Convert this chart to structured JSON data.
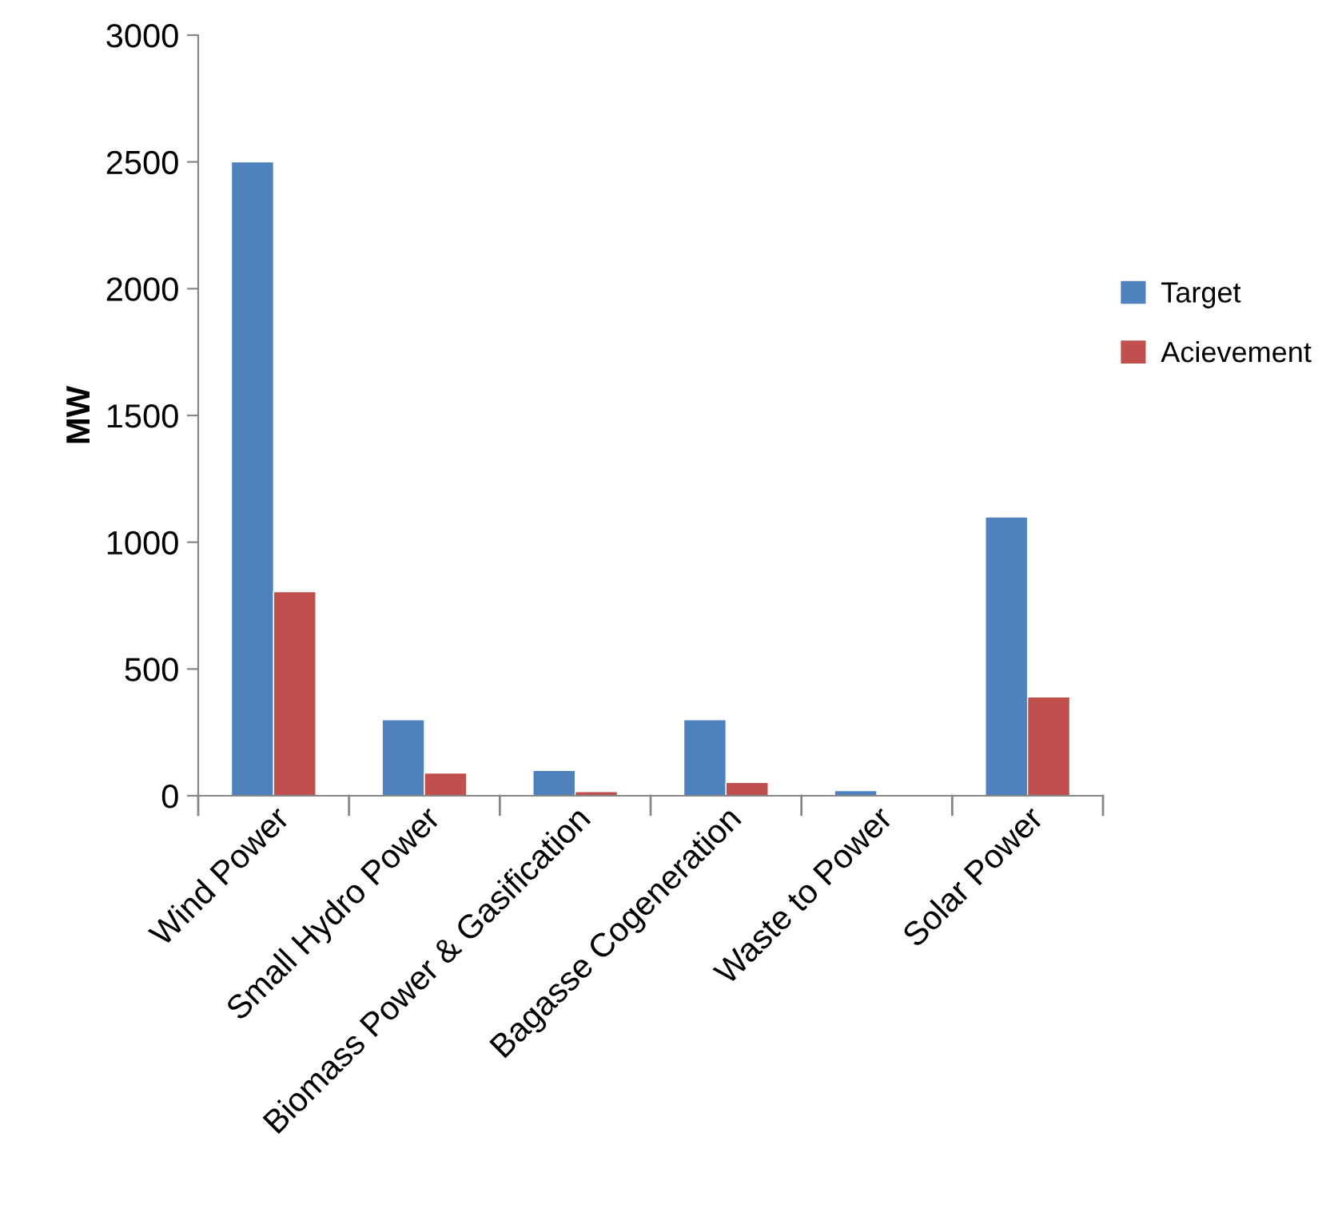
{
  "chart_data": {
    "type": "bar",
    "ylabel": "MW",
    "categories": [
      "Wind Power",
      "Small Hydro Power",
      "Biomass Power & Gasification",
      "Bagasse Cogeneration",
      "Waste to Power",
      "Solar Power"
    ],
    "series": [
      {
        "name": "Target",
        "color": "#4f81bd",
        "values": [
          2500,
          300,
          100,
          300,
          20,
          1100
        ]
      },
      {
        "name": "Acievement",
        "color": "#c0504d",
        "values": [
          805,
          90,
          16,
          53,
          null,
          390
        ]
      }
    ],
    "ylim": [
      0,
      3000
    ],
    "yticks": [
      0,
      500,
      1000,
      1500,
      2000,
      2500,
      3000
    ],
    "grid": false,
    "legend": "right"
  }
}
